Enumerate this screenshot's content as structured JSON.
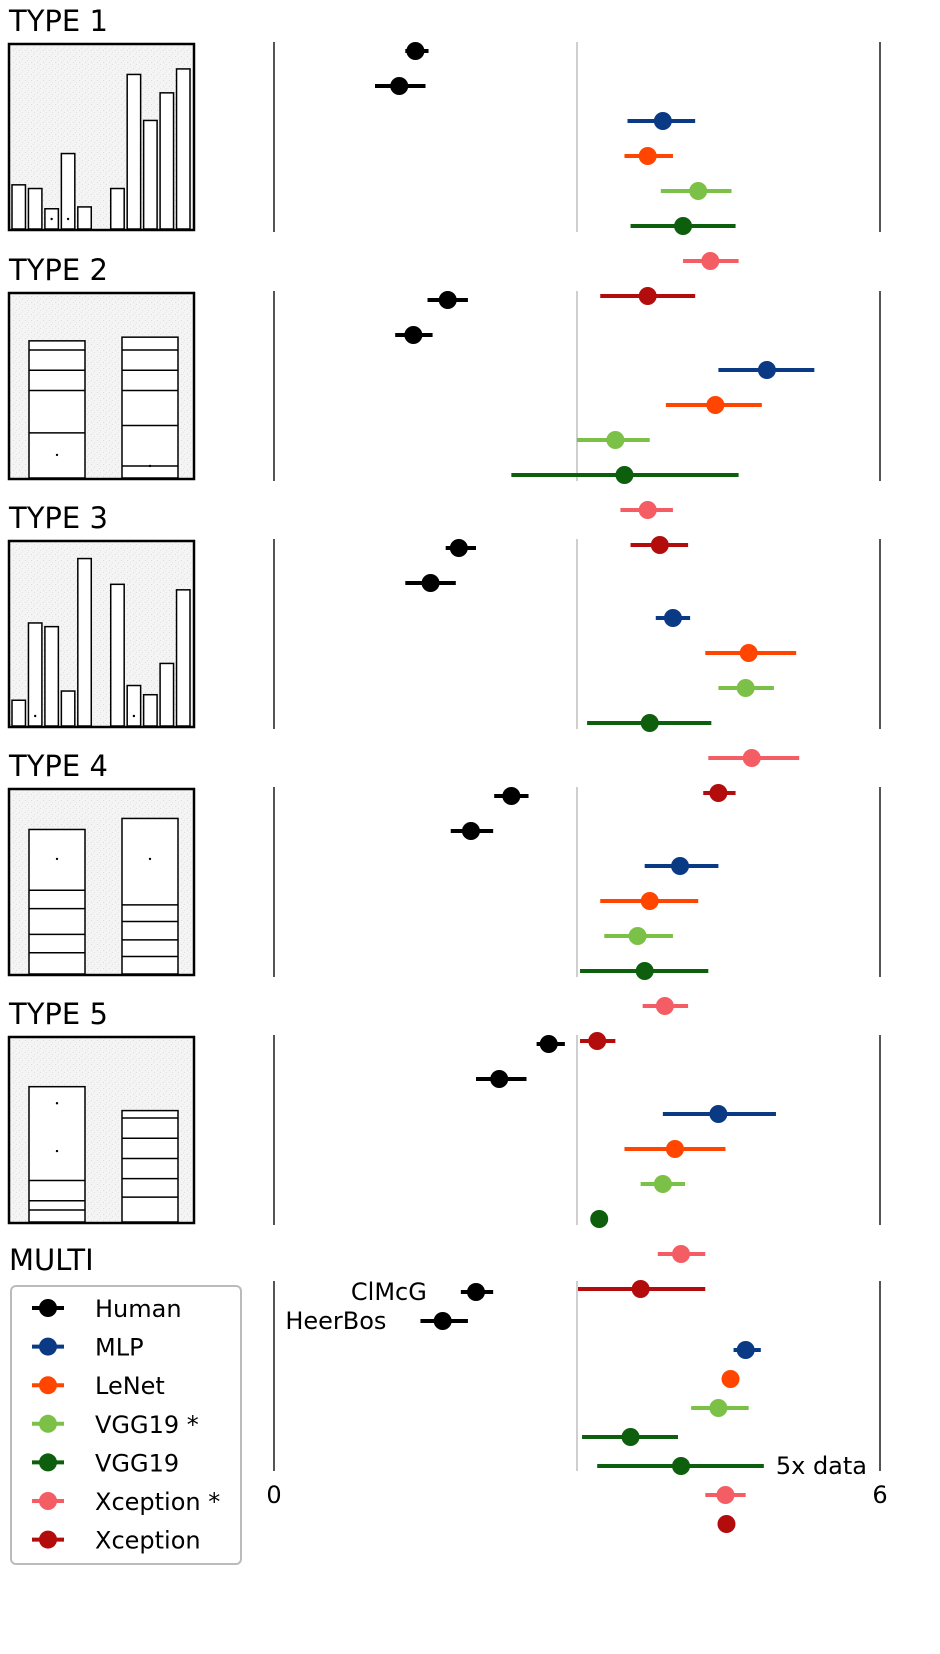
{
  "chart_data": {
    "type": "scatter",
    "xlabel": "",
    "ylabel": "",
    "xlim": [
      0,
      6
    ],
    "x_ticks": [
      "0",
      "6"
    ],
    "grid": "vertical line at x=3",
    "legend_placement": "bottom-left",
    "series_colors": {
      "Human": "#000000",
      "MLP": "#0b3a85",
      "LeNet": "#ff4500",
      "VGG19 *": "#7bc147",
      "VGG19": "#0d5e0d",
      "Xception *": "#f45d63",
      "Xception": "#b30c0c"
    },
    "legend": [
      "Human",
      "MLP",
      "LeNet",
      "VGG19 *",
      "VGG19",
      "Xception *",
      "Xception"
    ],
    "panels": [
      {
        "title": "TYPE 1",
        "thumbnail": {
          "kind": "bars",
          "bars": [
            0.24,
            0.22,
            0.11,
            0.41,
            0.12,
            0.0,
            0.22,
            0.84,
            0.59,
            0.74,
            0.87
          ],
          "dots": [
            2,
            3
          ]
        },
        "rows": [
          {
            "series": "Human",
            "x": 1.4,
            "low": 1.3,
            "high": 1.53
          },
          {
            "series": "Human",
            "x": 1.24,
            "low": 1.0,
            "high": 1.5
          },
          {
            "series": "MLP",
            "x": 3.85,
            "low": 3.5,
            "high": 4.17
          },
          {
            "series": "LeNet",
            "x": 3.7,
            "low": 3.47,
            "high": 3.95
          },
          {
            "series": "VGG19 *",
            "x": 4.2,
            "low": 3.83,
            "high": 4.53
          },
          {
            "series": "VGG19",
            "x": 4.05,
            "low": 3.53,
            "high": 4.57
          },
          {
            "series": "Xception *",
            "x": 4.32,
            "low": 4.05,
            "high": 4.6
          },
          {
            "series": "Xception",
            "x": 3.7,
            "low": 3.23,
            "high": 4.17
          }
        ]
      },
      {
        "title": "TYPE 2",
        "thumbnail": {
          "kind": "stacked",
          "left_lines": [
            0.2,
            0.31,
            0.42,
            0.53,
            0.76
          ],
          "right_lines": [
            0.31,
            0.42,
            0.53,
            0.72,
            0.94
          ],
          "left_dot": 0.88,
          "right_dot": 0.94
        },
        "rows": [
          {
            "series": "Human",
            "x": 1.72,
            "low": 1.52,
            "high": 1.92
          },
          {
            "series": "Human",
            "x": 1.38,
            "low": 1.2,
            "high": 1.57
          },
          {
            "series": "MLP",
            "x": 4.88,
            "low": 4.4,
            "high": 5.35
          },
          {
            "series": "LeNet",
            "x": 4.37,
            "low": 3.88,
            "high": 4.83
          },
          {
            "series": "VGG19 *",
            "x": 3.38,
            "low": 3.0,
            "high": 3.72
          },
          {
            "series": "VGG19",
            "x": 3.47,
            "low": 2.35,
            "high": 4.6
          },
          {
            "series": "Xception *",
            "x": 3.7,
            "low": 3.43,
            "high": 3.95
          },
          {
            "series": "Xception",
            "x": 3.82,
            "low": 3.53,
            "high": 4.1
          }
        ]
      },
      {
        "title": "TYPE 3",
        "thumbnail": {
          "kind": "bars",
          "bars": [
            0.14,
            0.56,
            0.54,
            0.19,
            0.91,
            0.0,
            0.77,
            0.22,
            0.17,
            0.34,
            0.74
          ],
          "dots": [
            1,
            7
          ]
        },
        "rows": [
          {
            "series": "Human",
            "x": 1.83,
            "low": 1.7,
            "high": 2.0
          },
          {
            "series": "Human",
            "x": 1.55,
            "low": 1.3,
            "high": 1.8
          },
          {
            "series": "MLP",
            "x": 3.95,
            "low": 3.78,
            "high": 4.12
          },
          {
            "series": "LeNet",
            "x": 4.7,
            "low": 4.27,
            "high": 5.17
          },
          {
            "series": "VGG19 *",
            "x": 4.67,
            "low": 4.4,
            "high": 4.95
          },
          {
            "series": "VGG19",
            "x": 3.72,
            "low": 3.1,
            "high": 4.33
          },
          {
            "series": "Xception *",
            "x": 4.73,
            "low": 4.3,
            "high": 5.2
          },
          {
            "series": "Xception",
            "x": 4.4,
            "low": 4.25,
            "high": 4.57
          }
        ]
      },
      {
        "title": "TYPE 4",
        "thumbnail": {
          "kind": "stacked",
          "left_lines": [
            0.55,
            0.65,
            0.79,
            0.89
          ],
          "right_lines": [
            0.63,
            0.72,
            0.82,
            0.91
          ],
          "left_dot": 0.38,
          "right_dot": 0.38
        },
        "rows": [
          {
            "series": "Human",
            "x": 2.35,
            "low": 2.18,
            "high": 2.52
          },
          {
            "series": "Human",
            "x": 1.95,
            "low": 1.75,
            "high": 2.17
          },
          {
            "series": "MLP",
            "x": 4.02,
            "low": 3.67,
            "high": 4.4
          },
          {
            "series": "LeNet",
            "x": 3.72,
            "low": 3.23,
            "high": 4.2
          },
          {
            "series": "VGG19 *",
            "x": 3.6,
            "low": 3.27,
            "high": 3.95
          },
          {
            "series": "VGG19",
            "x": 3.67,
            "low": 3.03,
            "high": 4.3
          },
          {
            "series": "Xception *",
            "x": 3.87,
            "low": 3.65,
            "high": 4.1
          },
          {
            "series": "Xception",
            "x": 3.2,
            "low": 3.03,
            "high": 3.38
          }
        ]
      },
      {
        "title": "TYPE 5",
        "thumbnail": {
          "kind": "stacked",
          "left_lines": [
            0.18,
            0.78,
            0.89,
            0.94
          ],
          "right_lines": [
            0.44,
            0.55,
            0.66,
            0.77,
            0.87
          ],
          "left_dot_a": 0.36,
          "left_dot_b": 0.62
        },
        "rows": [
          {
            "series": "Human",
            "x": 2.72,
            "low": 2.6,
            "high": 2.88
          },
          {
            "series": "Human",
            "x": 2.23,
            "low": 2.0,
            "high": 2.5
          },
          {
            "series": "MLP",
            "x": 4.4,
            "low": 3.85,
            "high": 4.97
          },
          {
            "series": "LeNet",
            "x": 3.97,
            "low": 3.47,
            "high": 4.47
          },
          {
            "series": "VGG19 *",
            "x": 3.85,
            "low": 3.63,
            "high": 4.07
          },
          {
            "series": "VGG19",
            "x": 3.22,
            "low": 3.22,
            "high": 3.22
          },
          {
            "series": "Xception *",
            "x": 4.03,
            "low": 3.8,
            "high": 4.27
          },
          {
            "series": "Xception",
            "x": 3.63,
            "low": 3.0,
            "high": 4.27
          }
        ]
      },
      {
        "title": "MULTI",
        "rows": [
          {
            "series": "Human",
            "x": 2.0,
            "low": 1.85,
            "high": 2.17,
            "label": "ClMcG"
          },
          {
            "series": "Human",
            "x": 1.67,
            "low": 1.45,
            "high": 1.92,
            "label": "HeerBos"
          },
          {
            "series": "MLP",
            "x": 4.67,
            "low": 4.55,
            "high": 4.82
          },
          {
            "series": "LeNet",
            "x": 4.52,
            "low": 4.45,
            "high": 4.6
          },
          {
            "series": "VGG19 *",
            "x": 4.4,
            "low": 4.13,
            "high": 4.7
          },
          {
            "series": "VGG19",
            "x": 3.53,
            "low": 3.05,
            "high": 4.0
          },
          {
            "series": "VGG19",
            "x": 4.03,
            "low": 3.2,
            "high": 4.85,
            "label": "5x data"
          },
          {
            "series": "Xception *",
            "x": 4.47,
            "low": 4.27,
            "high": 4.67
          },
          {
            "series": "Xception",
            "x": 4.48,
            "low": 4.48,
            "high": 4.48
          }
        ]
      }
    ]
  }
}
